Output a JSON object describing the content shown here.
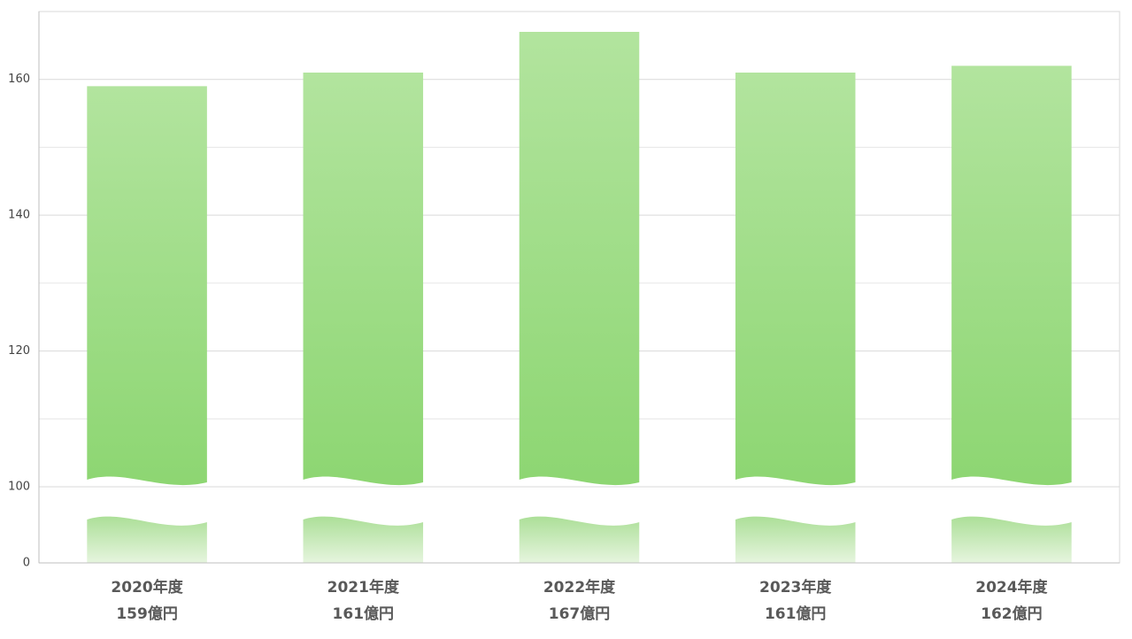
{
  "chart_data": {
    "type": "bar",
    "categories": [
      "2020年度",
      "2021年度",
      "2022年度",
      "2023年度",
      "2024年度"
    ],
    "values": [
      159,
      161,
      167,
      161,
      162
    ],
    "value_labels": [
      "159億円",
      "161億円",
      "167億円",
      "161億円",
      "162億円"
    ],
    "color": "#8fd672",
    "ylim": [
      0,
      170
    ],
    "yticks": [
      0,
      100,
      120,
      140,
      160
    ],
    "minor_yticks": [
      110,
      130,
      150
    ],
    "grid": true
  }
}
